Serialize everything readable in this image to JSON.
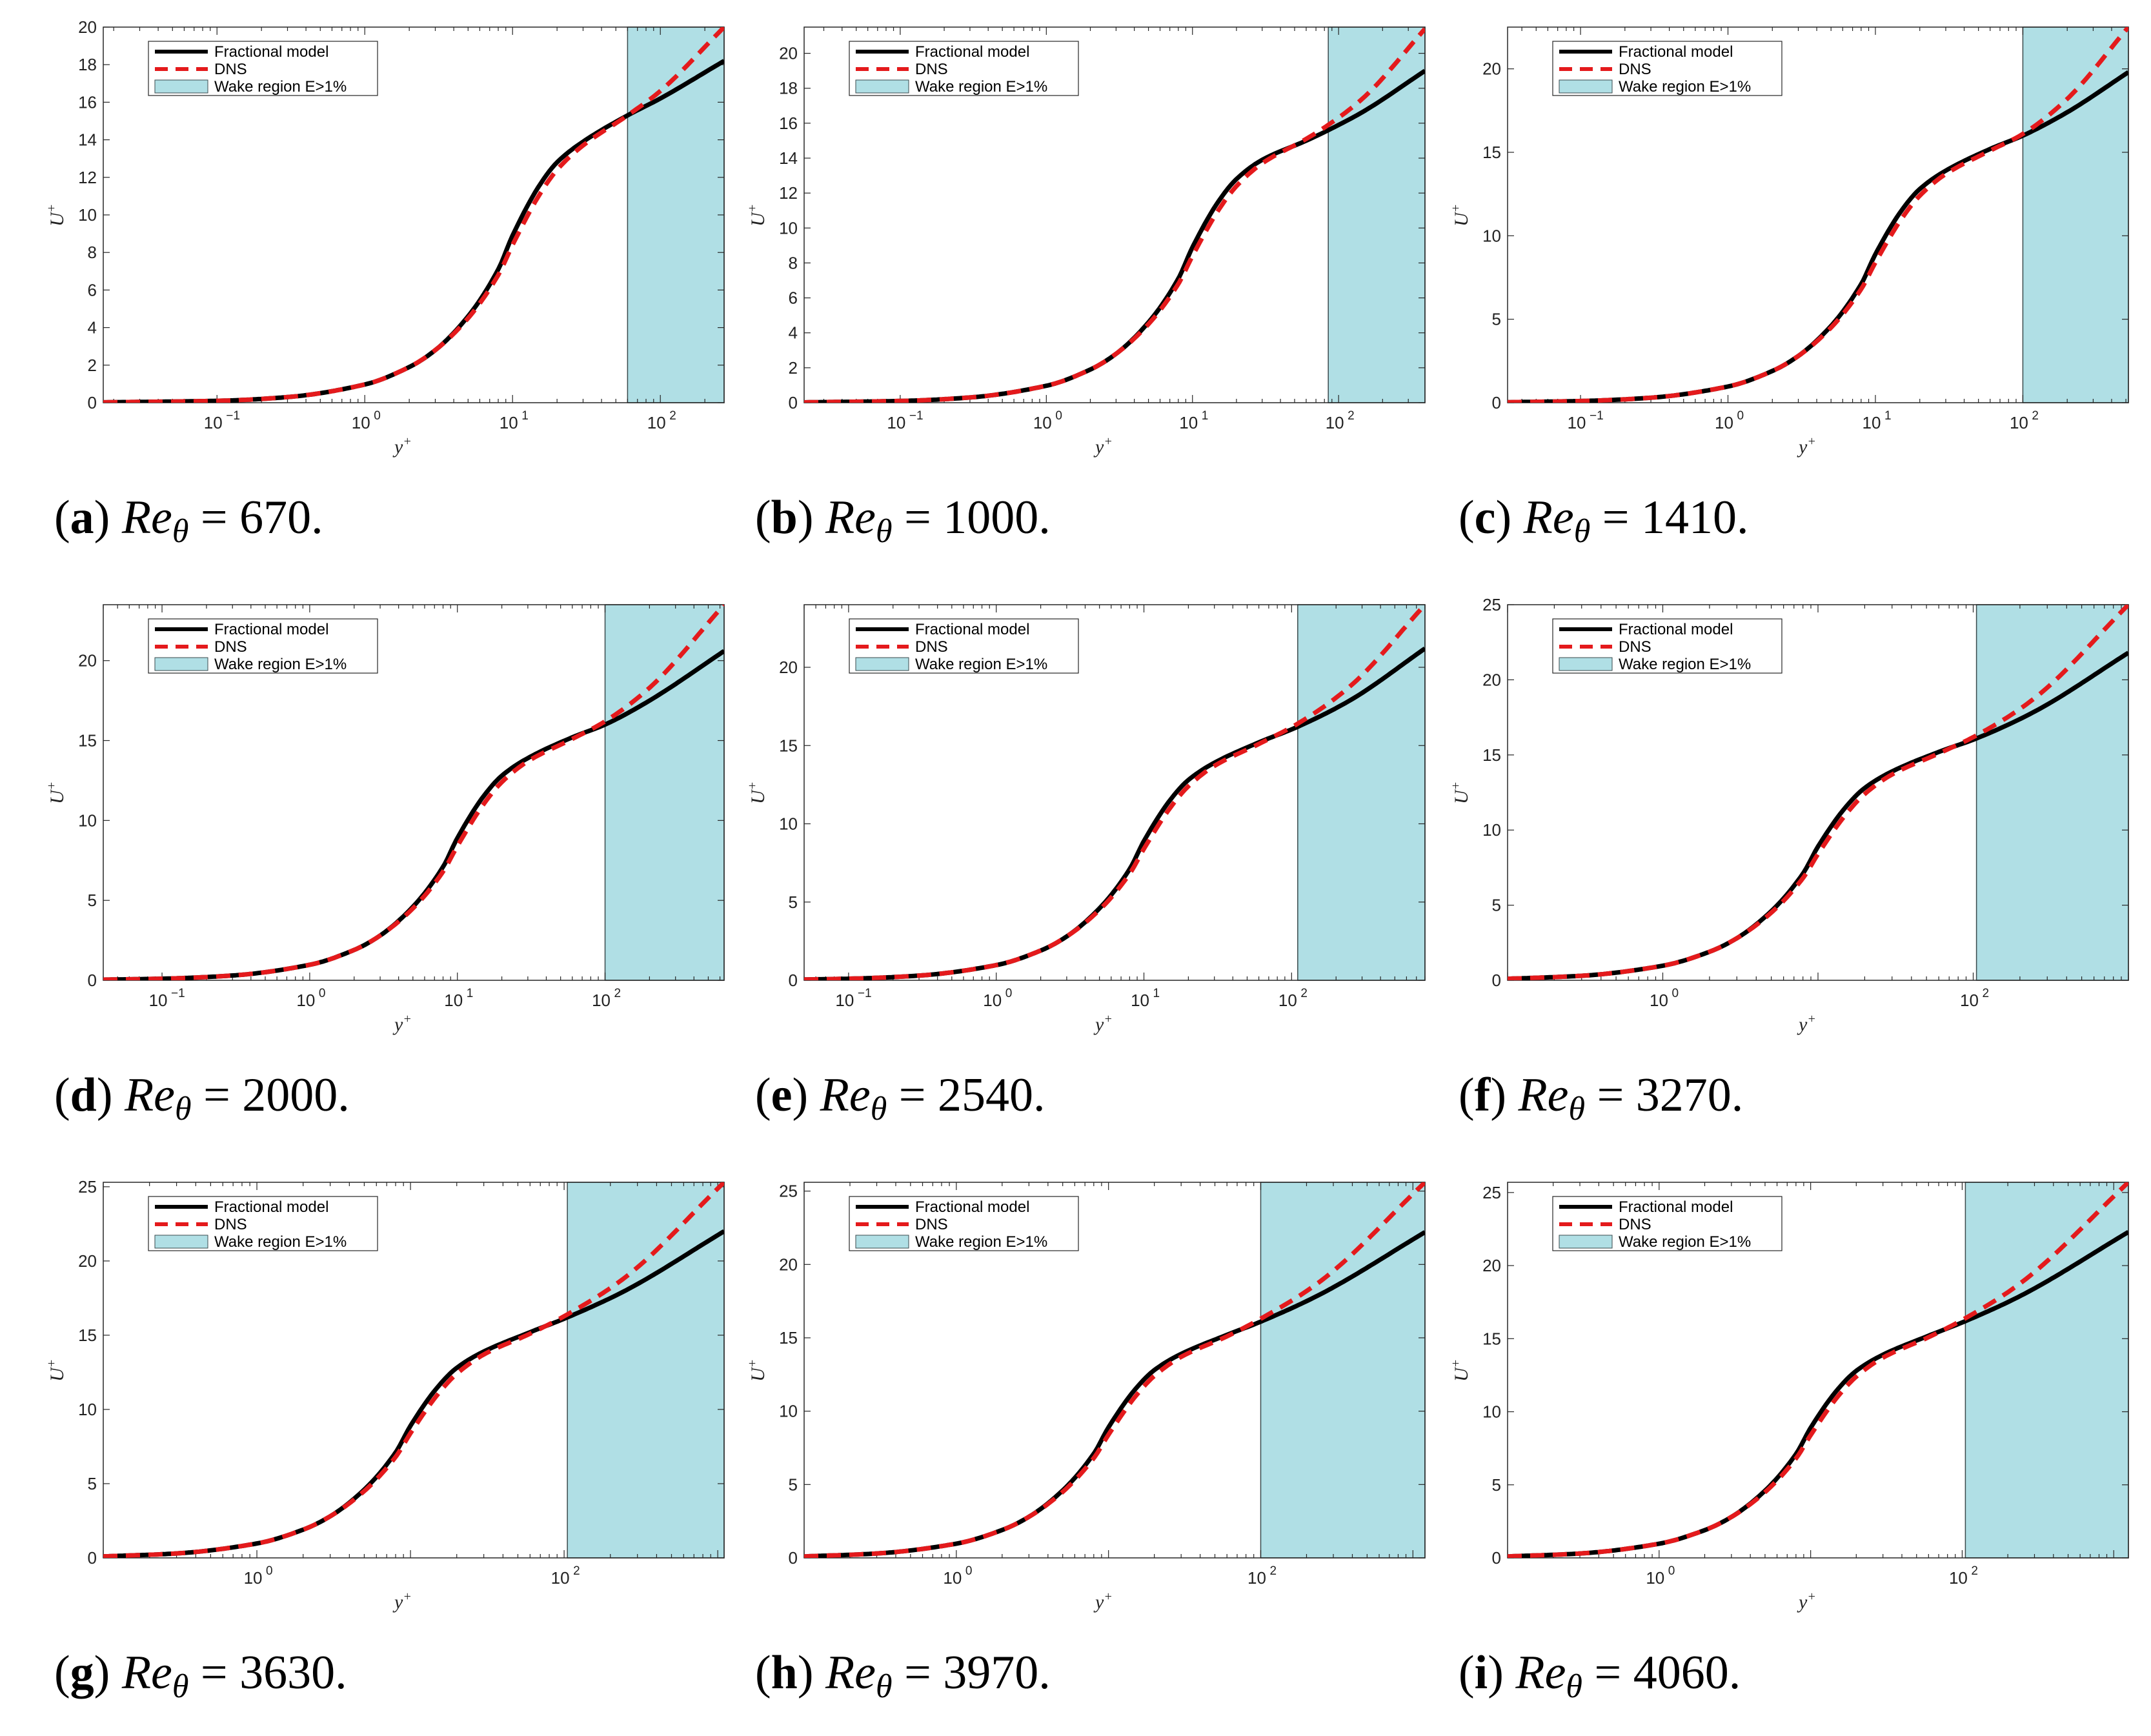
{
  "figure": {
    "legend_labels": {
      "model": "Fractional model",
      "dns": "DNS",
      "wake": "Wake region E>1%"
    },
    "colors": {
      "model": "#000000",
      "dns": "#e41a1c",
      "wake": "#b0dfe5"
    }
  },
  "chart_data": [
    {
      "type": "line",
      "panel": "a",
      "caption_letter": "(a)",
      "caption_value": "= 670.",
      "re_theta": 670,
      "xlabel": "y+",
      "ylabel": "U+",
      "xscale": "log",
      "xlim": [
        0.017,
        270
      ],
      "ylim": [
        0,
        20
      ],
      "yticks": [
        0,
        2,
        4,
        6,
        8,
        10,
        12,
        14,
        16,
        18,
        20
      ],
      "xtick_exponents": [
        -1,
        0,
        1,
        2
      ],
      "wake_region_start": 60,
      "series": [
        {
          "name": "Fractional model",
          "x": [
            0.017,
            0.1,
            0.3,
            1,
            2,
            3,
            5,
            8,
            10,
            15,
            20,
            30,
            60,
            100,
            270
          ],
          "y": [
            0.02,
            0.1,
            0.3,
            0.97,
            1.9,
            2.8,
            4.6,
            7.1,
            8.9,
            11.5,
            12.8,
            13.9,
            15.3,
            16.2,
            18.2
          ]
        },
        {
          "name": "DNS",
          "x": [
            0.017,
            0.1,
            0.3,
            1,
            2,
            3,
            5,
            8,
            10,
            15,
            20,
            30,
            60,
            100,
            270
          ],
          "y": [
            0.02,
            0.1,
            0.3,
            0.97,
            1.9,
            2.8,
            4.5,
            6.8,
            8.4,
            11.0,
            12.4,
            13.7,
            15.3,
            16.6,
            20.0
          ]
        }
      ]
    },
    {
      "type": "line",
      "panel": "b",
      "caption_letter": "(b)",
      "caption_value": "= 1000.",
      "re_theta": 1000,
      "xlabel": "y+",
      "ylabel": "U+",
      "xscale": "log",
      "xlim": [
        0.022,
        390
      ],
      "ylim": [
        0,
        21.5
      ],
      "yticks": [
        0,
        2,
        4,
        6,
        8,
        10,
        12,
        14,
        16,
        18,
        20
      ],
      "xtick_exponents": [
        -1,
        0,
        1,
        2
      ],
      "wake_region_start": 85,
      "series": [
        {
          "name": "Fractional model",
          "x": [
            0.022,
            0.1,
            0.3,
            1,
            2,
            3,
            5,
            8,
            10,
            15,
            20,
            30,
            60,
            85,
            150,
            390
          ],
          "y": [
            0.02,
            0.1,
            0.3,
            0.97,
            1.9,
            2.8,
            4.6,
            7.1,
            8.9,
            11.5,
            12.8,
            13.9,
            15.0,
            15.6,
            16.7,
            19.0
          ]
        },
        {
          "name": "DNS",
          "x": [
            0.022,
            0.1,
            0.3,
            1,
            2,
            3,
            5,
            8,
            10,
            15,
            20,
            30,
            60,
            85,
            150,
            390
          ],
          "y": [
            0.02,
            0.1,
            0.3,
            0.97,
            1.9,
            2.8,
            4.5,
            6.8,
            8.4,
            11.0,
            12.4,
            13.7,
            15.1,
            15.9,
            17.5,
            21.4
          ]
        }
      ]
    },
    {
      "type": "line",
      "panel": "c",
      "caption_letter": "(c)",
      "caption_value": "= 1410.",
      "re_theta": 1410,
      "xlabel": "y+",
      "ylabel": "U+",
      "xscale": "log",
      "xlim": [
        0.032,
        520
      ],
      "ylim": [
        0,
        22.5
      ],
      "yticks": [
        0,
        5,
        10,
        15,
        20
      ],
      "xtick_exponents": [
        -1,
        0,
        1,
        2
      ],
      "wake_region_start": 100,
      "series": [
        {
          "name": "Fractional model",
          "x": [
            0.032,
            0.1,
            0.3,
            1,
            2,
            3,
            5,
            8,
            10,
            15,
            20,
            30,
            60,
            100,
            200,
            520
          ],
          "y": [
            0.03,
            0.1,
            0.3,
            0.97,
            1.9,
            2.8,
            4.6,
            7.1,
            8.9,
            11.5,
            12.8,
            13.9,
            15.2,
            16.0,
            17.4,
            19.8
          ]
        },
        {
          "name": "DNS",
          "x": [
            0.032,
            0.1,
            0.3,
            1,
            2,
            3,
            5,
            8,
            10,
            15,
            20,
            30,
            60,
            100,
            200,
            520
          ],
          "y": [
            0.03,
            0.1,
            0.3,
            0.97,
            1.9,
            2.8,
            4.5,
            6.8,
            8.4,
            11.0,
            12.4,
            13.7,
            15.1,
            16.1,
            18.2,
            22.5
          ]
        }
      ]
    },
    {
      "type": "line",
      "panel": "d",
      "caption_letter": "(d)",
      "caption_value": "= 2000.",
      "re_theta": 2000,
      "xlabel": "y+",
      "ylabel": "U+",
      "xscale": "log",
      "xlim": [
        0.04,
        640
      ],
      "ylim": [
        0,
        23.5
      ],
      "yticks": [
        0,
        5,
        10,
        15,
        20
      ],
      "xtick_exponents": [
        -1,
        0,
        1,
        2
      ],
      "wake_region_start": 100,
      "series": [
        {
          "name": "Fractional model",
          "x": [
            0.04,
            0.1,
            0.3,
            1,
            2,
            3,
            5,
            8,
            10,
            15,
            20,
            30,
            60,
            100,
            200,
            640
          ],
          "y": [
            0.04,
            0.1,
            0.3,
            0.97,
            1.9,
            2.8,
            4.6,
            7.1,
            8.9,
            11.5,
            12.8,
            13.9,
            15.2,
            16.0,
            17.5,
            20.6
          ]
        },
        {
          "name": "DNS",
          "x": [
            0.04,
            0.1,
            0.3,
            1,
            2,
            3,
            5,
            8,
            10,
            15,
            20,
            30,
            60,
            100,
            200,
            640
          ],
          "y": [
            0.04,
            0.1,
            0.3,
            0.97,
            1.9,
            2.8,
            4.5,
            6.8,
            8.4,
            11.0,
            12.4,
            13.7,
            15.1,
            16.2,
            18.3,
            23.5
          ]
        }
      ]
    },
    {
      "type": "line",
      "panel": "e",
      "caption_letter": "(e)",
      "caption_value": "= 2540.",
      "re_theta": 2540,
      "xlabel": "y+",
      "ylabel": "U+",
      "xscale": "log",
      "xlim": [
        0.05,
        800
      ],
      "ylim": [
        0,
        24
      ],
      "yticks": [
        0,
        5,
        10,
        15,
        20
      ],
      "xtick_exponents": [
        -1,
        0,
        1,
        2
      ],
      "wake_region_start": 110,
      "series": [
        {
          "name": "Fractional model",
          "x": [
            0.05,
            0.1,
            0.3,
            1,
            2,
            3,
            5,
            8,
            10,
            15,
            20,
            30,
            60,
            110,
            250,
            800
          ],
          "y": [
            0.05,
            0.1,
            0.3,
            0.97,
            1.9,
            2.8,
            4.6,
            7.1,
            8.9,
            11.5,
            12.8,
            13.9,
            15.2,
            16.2,
            17.9,
            21.2
          ]
        },
        {
          "name": "DNS",
          "x": [
            0.05,
            0.1,
            0.3,
            1,
            2,
            3,
            5,
            8,
            10,
            15,
            20,
            30,
            60,
            110,
            250,
            800
          ],
          "y": [
            0.05,
            0.1,
            0.3,
            0.97,
            1.9,
            2.8,
            4.5,
            6.8,
            8.4,
            11.0,
            12.4,
            13.7,
            15.1,
            16.4,
            18.8,
            24.0
          ]
        }
      ]
    },
    {
      "type": "line",
      "panel": "f",
      "caption_letter": "(f)",
      "caption_value": "= 3270.",
      "re_theta": 3270,
      "xlabel": "y+",
      "ylabel": "U+",
      "xscale": "log",
      "xlim": [
        0.1,
        1000
      ],
      "ylim": [
        0,
        25
      ],
      "yticks": [
        0,
        5,
        10,
        15,
        20,
        25
      ],
      "xtick_exponents": [
        0,
        2
      ],
      "wake_region_start": 105,
      "series": [
        {
          "name": "Fractional model",
          "x": [
            0.1,
            0.3,
            1,
            2,
            3,
            5,
            8,
            10,
            15,
            20,
            30,
            60,
            105,
            250,
            1000
          ],
          "y": [
            0.1,
            0.3,
            0.97,
            1.9,
            2.8,
            4.6,
            7.1,
            8.9,
            11.5,
            12.8,
            13.9,
            15.2,
            16.1,
            17.9,
            21.8
          ]
        },
        {
          "name": "DNS",
          "x": [
            0.1,
            0.3,
            1,
            2,
            3,
            5,
            8,
            10,
            15,
            20,
            30,
            60,
            105,
            250,
            1000
          ],
          "y": [
            0.1,
            0.3,
            0.97,
            1.9,
            2.8,
            4.5,
            6.8,
            8.4,
            11.0,
            12.4,
            13.7,
            15.1,
            16.3,
            18.8,
            25.0
          ]
        }
      ]
    },
    {
      "type": "line",
      "panel": "g",
      "caption_letter": "(g)",
      "caption_value": "= 3630.",
      "re_theta": 3630,
      "xlabel": "y+",
      "ylabel": "U+",
      "xscale": "log",
      "xlim": [
        0.1,
        1100
      ],
      "ylim": [
        0,
        25.3
      ],
      "yticks": [
        0,
        5,
        10,
        15,
        20,
        25
      ],
      "xtick_exponents": [
        0,
        2
      ],
      "wake_region_start": 105,
      "series": [
        {
          "name": "Fractional model",
          "x": [
            0.1,
            0.3,
            1,
            2,
            3,
            5,
            8,
            10,
            15,
            20,
            30,
            60,
            105,
            250,
            1100
          ],
          "y": [
            0.1,
            0.3,
            0.97,
            1.9,
            2.8,
            4.6,
            7.1,
            8.9,
            11.5,
            12.8,
            13.9,
            15.2,
            16.2,
            18.0,
            22.0
          ]
        },
        {
          "name": "DNS",
          "x": [
            0.1,
            0.3,
            1,
            2,
            3,
            5,
            8,
            10,
            15,
            20,
            30,
            60,
            105,
            250,
            1100
          ],
          "y": [
            0.1,
            0.3,
            0.97,
            1.9,
            2.8,
            4.5,
            6.8,
            8.4,
            11.0,
            12.4,
            13.7,
            15.1,
            16.4,
            18.9,
            25.3
          ]
        }
      ]
    },
    {
      "type": "line",
      "panel": "h",
      "caption_letter": "(h)",
      "caption_value": "= 3970.",
      "re_theta": 3970,
      "xlabel": "y+",
      "ylabel": "U+",
      "xscale": "log",
      "xlim": [
        0.1,
        1200
      ],
      "ylim": [
        0,
        25.6
      ],
      "yticks": [
        0,
        5,
        10,
        15,
        20,
        25
      ],
      "xtick_exponents": [
        0,
        2
      ],
      "wake_region_start": 100,
      "series": [
        {
          "name": "Fractional model",
          "x": [
            0.1,
            0.3,
            1,
            2,
            3,
            5,
            8,
            10,
            15,
            20,
            30,
            60,
            100,
            250,
            1200
          ],
          "y": [
            0.1,
            0.3,
            0.97,
            1.9,
            2.8,
            4.6,
            7.1,
            8.9,
            11.5,
            12.8,
            13.9,
            15.2,
            16.1,
            18.0,
            22.2
          ]
        },
        {
          "name": "DNS",
          "x": [
            0.1,
            0.3,
            1,
            2,
            3,
            5,
            8,
            10,
            15,
            20,
            30,
            60,
            100,
            250,
            1200
          ],
          "y": [
            0.1,
            0.3,
            0.97,
            1.9,
            2.8,
            4.5,
            6.8,
            8.4,
            11.0,
            12.4,
            13.7,
            15.1,
            16.3,
            18.9,
            25.6
          ]
        }
      ]
    },
    {
      "type": "line",
      "panel": "i",
      "caption_letter": "(i)",
      "caption_value": "= 4060.",
      "re_theta": 4060,
      "xlabel": "y+",
      "ylabel": "U+",
      "xscale": "log",
      "xlim": [
        0.1,
        1250
      ],
      "ylim": [
        0,
        25.7
      ],
      "yticks": [
        0,
        5,
        10,
        15,
        20,
        25
      ],
      "xtick_exponents": [
        0,
        2
      ],
      "wake_region_start": 105,
      "series": [
        {
          "name": "Fractional model",
          "x": [
            0.1,
            0.3,
            1,
            2,
            3,
            5,
            8,
            10,
            15,
            20,
            30,
            60,
            105,
            250,
            1250
          ],
          "y": [
            0.1,
            0.3,
            0.97,
            1.9,
            2.8,
            4.6,
            7.1,
            8.9,
            11.5,
            12.8,
            13.9,
            15.2,
            16.2,
            18.0,
            22.3
          ]
        },
        {
          "name": "DNS",
          "x": [
            0.1,
            0.3,
            1,
            2,
            3,
            5,
            8,
            10,
            15,
            20,
            30,
            60,
            105,
            250,
            1250
          ],
          "y": [
            0.1,
            0.3,
            0.97,
            1.9,
            2.8,
            4.5,
            6.8,
            8.4,
            11.0,
            12.4,
            13.7,
            15.1,
            16.4,
            18.9,
            25.7
          ]
        }
      ]
    }
  ]
}
